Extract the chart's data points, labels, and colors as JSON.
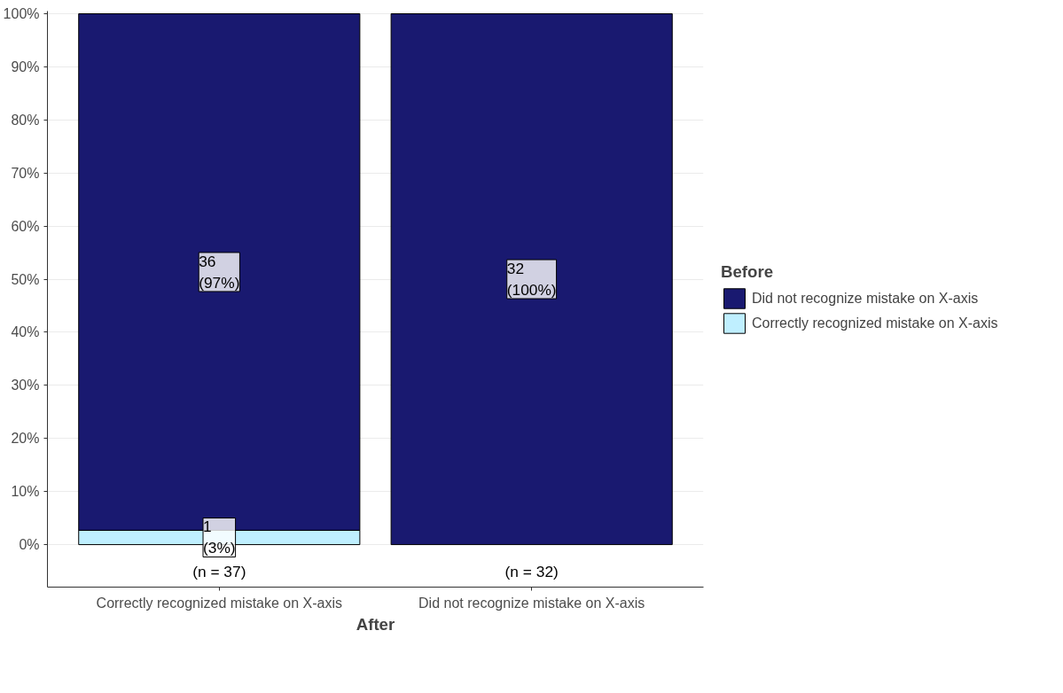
{
  "chart_data": {
    "type": "bar",
    "stacked": true,
    "xlabel": "After",
    "legend_title": "Before",
    "categories": [
      "Correctly recognized mistake on X-axis",
      "Did not recognize mistake on X-axis"
    ],
    "series": [
      {
        "name": "Correctly recognized mistake on X-axis",
        "color": "#bfefff",
        "values": [
          2.7,
          null
        ],
        "value_labels": [
          "1\n(3%)",
          null
        ]
      },
      {
        "name": "Did not recognize mistake on X-axis",
        "color": "#191970",
        "values": [
          97.3,
          100
        ],
        "value_labels": [
          "36\n(97%)",
          "32\n(100%)"
        ]
      }
    ],
    "annotations": [
      "(n = 37)",
      "(n = 32)"
    ],
    "ylim": [
      -8,
      100.5
    ],
    "yticks": [
      {
        "value": 0,
        "label": "0%"
      },
      {
        "value": 10,
        "label": "10%"
      },
      {
        "value": 20,
        "label": "20%"
      },
      {
        "value": 30,
        "label": "30%"
      },
      {
        "value": 40,
        "label": "40%"
      },
      {
        "value": 50,
        "label": "50%"
      },
      {
        "value": 60,
        "label": "60%"
      },
      {
        "value": 70,
        "label": "70%"
      },
      {
        "value": 80,
        "label": "80%"
      },
      {
        "value": 90,
        "label": "90%"
      },
      {
        "value": 100,
        "label": "100%"
      }
    ],
    "grid": "y",
    "legend": "right"
  }
}
